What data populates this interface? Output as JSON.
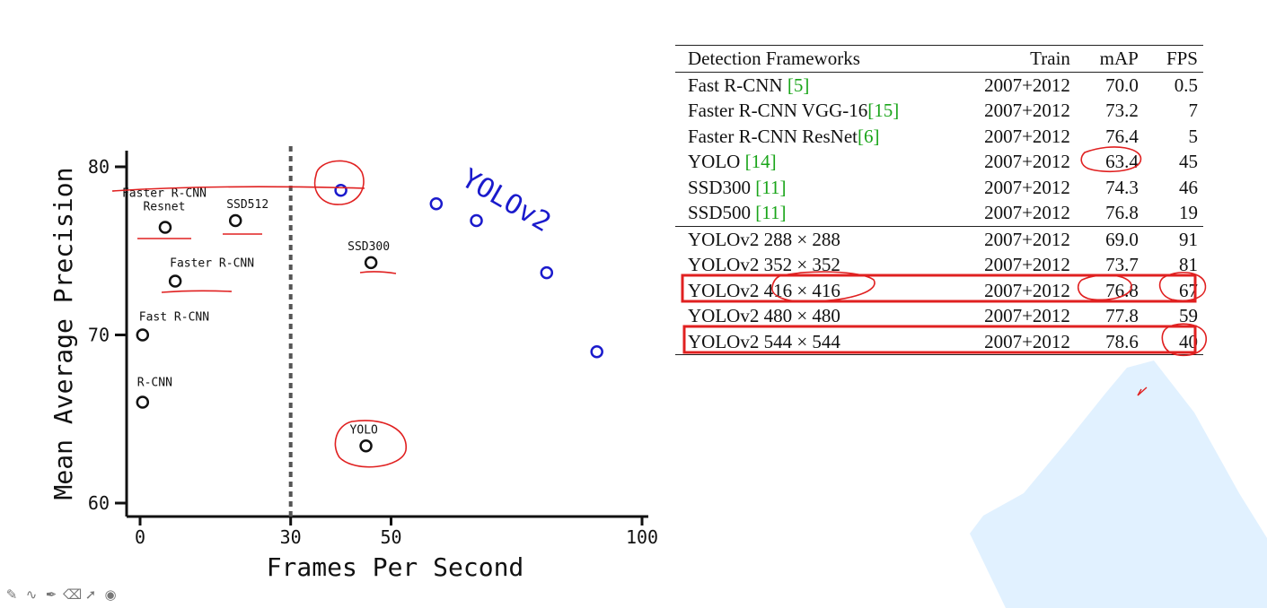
{
  "chart_data": {
    "type": "scatter",
    "xlabel": "Frames Per Second",
    "ylabel": "Mean Average Precision",
    "xlim": [
      0,
      100
    ],
    "ylim": [
      59,
      82
    ],
    "xticks": [
      0,
      30,
      50,
      100
    ],
    "yticks": [
      60,
      70,
      80
    ],
    "reference_line_x": 30,
    "points": [
      {
        "label": "R-CNN",
        "x": 0.5,
        "y": 66.0,
        "color": "#111111"
      },
      {
        "label": "Fast R-CNN",
        "x": 0.5,
        "y": 70.0,
        "color": "#111111"
      },
      {
        "label": "Faster R-CNN",
        "x": 7,
        "y": 73.2,
        "color": "#111111"
      },
      {
        "label": "Faster R-CNN\nResnet",
        "x": 5,
        "y": 76.4,
        "color": "#111111"
      },
      {
        "label": "SSD512",
        "x": 19,
        "y": 76.8,
        "color": "#111111"
      },
      {
        "label": "SSD300",
        "x": 46,
        "y": 74.3,
        "color": "#111111"
      },
      {
        "label": "YOLO",
        "x": 45,
        "y": 63.4,
        "color": "#111111"
      },
      {
        "label": "",
        "x": 40,
        "y": 78.6,
        "color": "#1a1acc"
      },
      {
        "label": "",
        "x": 59,
        "y": 77.8,
        "color": "#1a1acc"
      },
      {
        "label": "",
        "x": 67,
        "y": 76.8,
        "color": "#1a1acc"
      },
      {
        "label": "",
        "x": 81,
        "y": 73.7,
        "color": "#1a1acc"
      },
      {
        "label": "",
        "x": 91,
        "y": 69.0,
        "color": "#1a1acc"
      }
    ],
    "series_annotation": "YOLOv2",
    "series_annotation_color": "#1a1acc"
  },
  "table": {
    "headers": [
      "Detection Frameworks",
      "Train",
      "mAP",
      "FPS"
    ],
    "rows": [
      {
        "name": "Fast R-CNN ",
        "ref": "[5]",
        "train": "2007+2012",
        "map": "70.0",
        "fps": "0.5"
      },
      {
        "name": "Faster R-CNN VGG-16",
        "ref": "[15]",
        "train": "2007+2012",
        "map": "73.2",
        "fps": "7"
      },
      {
        "name": "Faster R-CNN ResNet",
        "ref": "[6]",
        "train": "2007+2012",
        "map": "76.4",
        "fps": "5"
      },
      {
        "name": "YOLO ",
        "ref": "[14]",
        "train": "2007+2012",
        "map": "63.4",
        "fps": "45"
      },
      {
        "name": "SSD300 ",
        "ref": "[11]",
        "train": "2007+2012",
        "map": "74.3",
        "fps": "46"
      },
      {
        "name": "SSD500 ",
        "ref": "[11]",
        "train": "2007+2012",
        "map": "76.8",
        "fps": "19"
      },
      {
        "name": "YOLOv2 288 × 288",
        "ref": "",
        "train": "2007+2012",
        "map": "69.0",
        "fps": "91"
      },
      {
        "name": "YOLOv2 352 × 352",
        "ref": "",
        "train": "2007+2012",
        "map": "73.7",
        "fps": "81"
      },
      {
        "name": "YOLOv2 416 × 416",
        "ref": "",
        "train": "2007+2012",
        "map": "76.8",
        "fps": "67"
      },
      {
        "name": "YOLOv2 480 × 480",
        "ref": "",
        "train": "2007+2012",
        "map": "77.8",
        "fps": "59"
      },
      {
        "name": "YOLOv2 544 × 544",
        "ref": "",
        "train": "2007+2012",
        "map": "78.6",
        "fps": "40"
      }
    ]
  },
  "colors": {
    "annotation_red": "#e02020",
    "ref_green": "#1aa51a",
    "shade_blue": "#dcefff"
  },
  "toolbar": {
    "tools": [
      {
        "icon": "pen-icon",
        "glyph": "✎"
      },
      {
        "icon": "freehand-icon",
        "glyph": "∿"
      },
      {
        "icon": "highlighter-icon",
        "glyph": "✒"
      },
      {
        "icon": "eraser-icon",
        "glyph": "⌫"
      },
      {
        "icon": "pointer-icon",
        "glyph": "➚"
      },
      {
        "icon": "record-icon",
        "glyph": "◉"
      }
    ]
  }
}
